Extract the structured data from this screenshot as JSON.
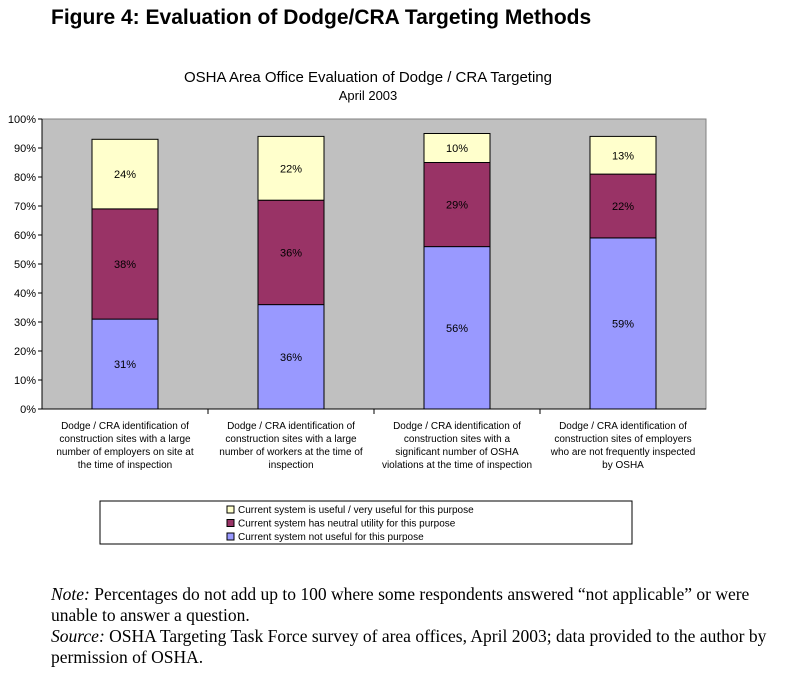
{
  "figure_title": "Figure 4: Evaluation of Dodge/CRA Targeting Methods",
  "chart_data": {
    "type": "bar",
    "stacked": true,
    "title": "OSHA Area Office Evaluation of Dodge / CRA Targeting",
    "subtitle": "April 2003",
    "categories": [
      [
        "Dodge / CRA identification of",
        "construction sites with a large",
        "number of employers on site at",
        "the time of inspection"
      ],
      [
        "Dodge / CRA identification of",
        "construction sites with a large",
        "number of workers at the time of",
        "inspection"
      ],
      [
        "Dodge / CRA identification of",
        "construction sites with a",
        "significant number of OSHA",
        "violations at the time of inspection"
      ],
      [
        "Dodge / CRA identification of",
        "construction sites of employers",
        "who are not frequently inspected",
        "by OSHA"
      ]
    ],
    "series": [
      {
        "name": "Current system not useful for this purpose",
        "color": "#9999ff",
        "values": [
          31,
          36,
          56,
          59
        ],
        "labels": [
          "31%",
          "36%",
          "56%",
          "59%"
        ]
      },
      {
        "name": "Current system has neutral utility for this purpose",
        "color": "#993366",
        "values": [
          38,
          36,
          29,
          22
        ],
        "labels": [
          "38%",
          "36%",
          "29%",
          "22%"
        ]
      },
      {
        "name": "Current system is useful / very useful for this purpose",
        "color": "#ffffcc",
        "values": [
          24,
          22,
          10,
          13
        ],
        "labels": [
          "24%",
          "22%",
          "10%",
          "13%"
        ]
      }
    ],
    "legend_order": [
      2,
      1,
      0
    ],
    "yticks": [
      "0%",
      "10%",
      "20%",
      "30%",
      "40%",
      "50%",
      "60%",
      "70%",
      "80%",
      "90%",
      "100%"
    ],
    "ylim": [
      0,
      100
    ],
    "plot_background": "#c0c0c0",
    "legend_placement": "bottom",
    "grid": false
  },
  "notes": {
    "note_label": "Note:",
    "note_text": " Percentages do not add up to 100 where some respondents answered “not applicable” or were unable to answer a question.",
    "source_label": "Source:",
    "source_text": " OSHA Targeting Task Force survey of area offices, April 2003; data provided to the author by permission of OSHA."
  }
}
